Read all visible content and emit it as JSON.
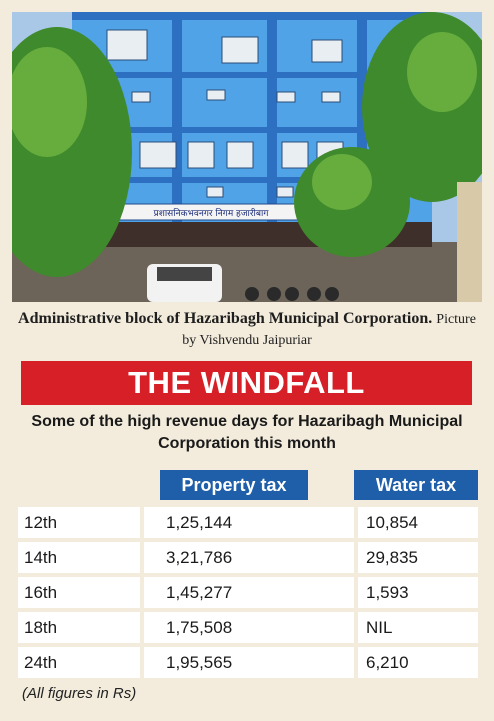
{
  "photo": {
    "signboard_text": "प्रशासनिकभवनगर निगम हजारीबाग"
  },
  "caption": {
    "main": "Administrative block of Hazaribagh Municipal Corporation.",
    "credit": "Picture by Vishvendu Jaipuriar"
  },
  "banner": {
    "title": "THE WINDFALL"
  },
  "subtitle": "Some of the high revenue days for Hazaribagh Municipal Corporation this month",
  "table": {
    "headers": {
      "property": "Property tax",
      "water": "Water tax"
    },
    "rows": [
      {
        "day": "12th",
        "property": "1,25,144",
        "water": "10,854"
      },
      {
        "day": "14th",
        "property": "3,21,786",
        "water": "29,835"
      },
      {
        "day": "16th",
        "property": "1,45,277",
        "water": "1,593"
      },
      {
        "day": "18th",
        "property": "1,75,508",
        "water": "NIL"
      },
      {
        "day": "24th",
        "property": "1,95,565",
        "water": "6,210"
      }
    ]
  },
  "footnote": "(All figures in Rs)",
  "colors": {
    "banner": "#d61f26",
    "header": "#1f5ea8",
    "background": "#f3ecdc"
  }
}
